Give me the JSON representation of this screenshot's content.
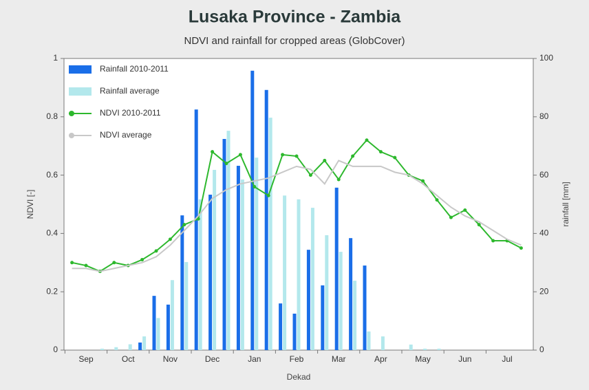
{
  "chart_data": {
    "type": "combo",
    "title": "Lusaka Province - Zambia",
    "subtitle": "NDVI and rainfall for cropped areas (GlobCover)",
    "x_label": "Dekad",
    "y_label": "NDVI [-]",
    "y2_label": "rainfall [mm]",
    "categories": [
      null,
      "Sep",
      null,
      null,
      "Oct",
      null,
      null,
      "Nov",
      null,
      null,
      "Dec",
      null,
      null,
      "Jan",
      null,
      null,
      "Feb",
      null,
      null,
      "Mar",
      null,
      null,
      "Apr",
      null,
      null,
      "May",
      null,
      null,
      "Jun",
      null,
      null,
      "Jul",
      null
    ],
    "ylim": [
      0,
      1
    ],
    "yticks": [
      0,
      0.2,
      0.4,
      0.6,
      0.8,
      1
    ],
    "y2lim": [
      0,
      100
    ],
    "y2ticks": [
      0,
      20,
      40,
      60,
      80,
      100
    ],
    "legend": "top-left",
    "series": [
      {
        "name": "Rainfall 2010-2011",
        "type": "bar",
        "axis": "y2",
        "color": "#1a6ee8",
        "values": [
          0,
          0,
          0,
          0,
          0,
          2.6,
          18.6,
          15.6,
          46.2,
          82.5,
          53.3,
          72.4,
          63.2,
          95.8,
          89.2,
          16,
          12.5,
          34.4,
          22.2,
          55.7,
          38.4,
          29,
          0,
          0,
          0,
          0,
          0,
          0,
          0,
          0,
          0,
          0,
          0
        ]
      },
      {
        "name": "Rainfall average",
        "type": "bar",
        "axis": "y2",
        "color": "#b3e8ec",
        "values": [
          0,
          0,
          0.5,
          1,
          2,
          4.7,
          11,
          24,
          30.2,
          51.7,
          61.8,
          75.2,
          58.5,
          66,
          79.7,
          53,
          51.7,
          48.8,
          39.4,
          33.7,
          23.8,
          6.4,
          4.7,
          0,
          1.9,
          0.5,
          0.5,
          0,
          0,
          0,
          0,
          0,
          0
        ]
      },
      {
        "name": "NDVI 2010-2011",
        "type": "line",
        "axis": "y",
        "color": "#2db82d",
        "marker": true,
        "values": [
          0.3,
          0.29,
          0.27,
          0.3,
          0.29,
          0.31,
          0.34,
          0.38,
          0.43,
          0.45,
          0.68,
          0.64,
          0.67,
          0.56,
          0.53,
          0.67,
          0.665,
          0.6,
          0.65,
          0.585,
          0.665,
          0.72,
          0.68,
          0.66,
          0.6,
          0.58,
          0.515,
          0.455,
          0.48,
          0.43,
          0.375,
          0.375,
          0.35
        ]
      },
      {
        "name": "NDVI average",
        "type": "line",
        "axis": "y",
        "color": "#c8c8c8",
        "marker": false,
        "values": [
          0.28,
          0.28,
          0.27,
          0.28,
          0.29,
          0.3,
          0.32,
          0.36,
          0.41,
          0.46,
          0.52,
          0.55,
          0.57,
          0.58,
          0.59,
          0.61,
          0.63,
          0.62,
          0.57,
          0.65,
          0.63,
          0.63,
          0.63,
          0.61,
          0.6,
          0.57,
          0.53,
          0.49,
          0.46,
          0.44,
          0.41,
          0.38,
          0.36
        ]
      }
    ]
  }
}
